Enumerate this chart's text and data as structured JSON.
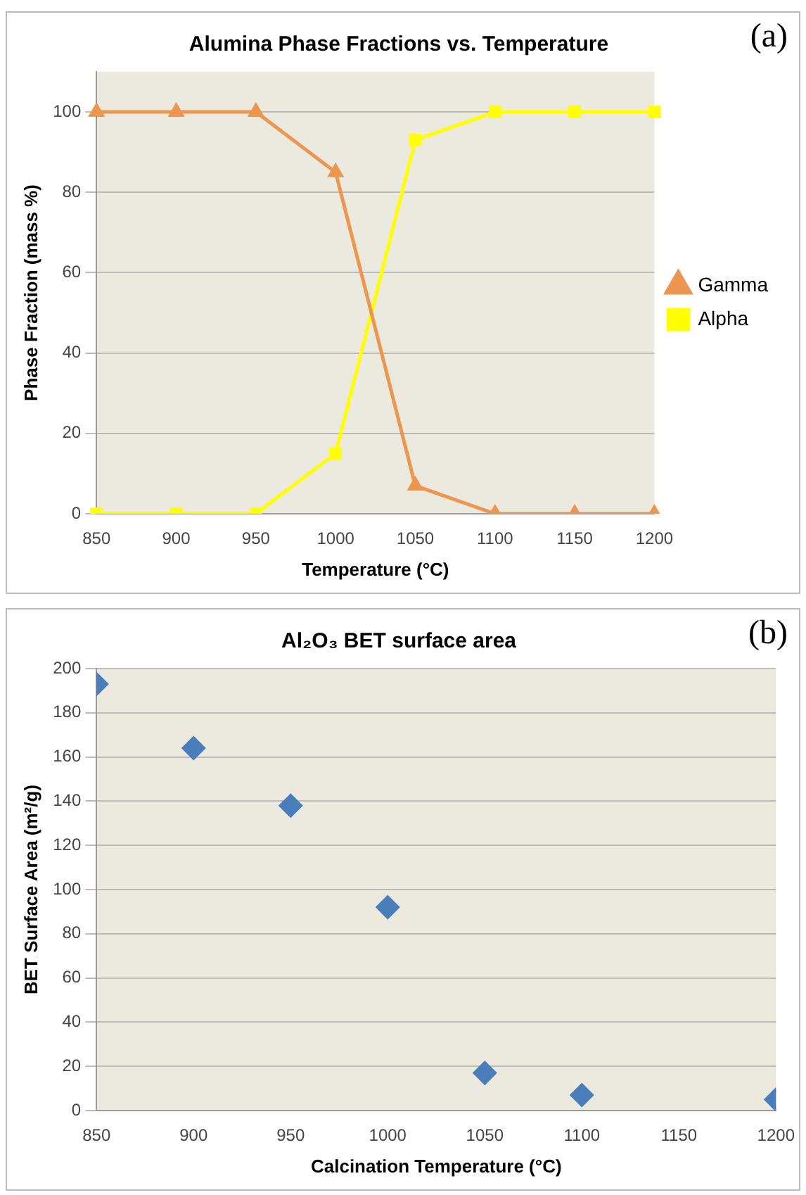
{
  "chart_data": [
    {
      "type": "line",
      "title": "Alumina Phase Fractions vs. Temperature",
      "xlabel": "Temperature (°C)",
      "ylabel": "Phase Fraction (mass %)",
      "annotations": [
        "(a)"
      ],
      "categories": [
        "850",
        "900",
        "950",
        "1000",
        "1050",
        "1100",
        "1150",
        "1200"
      ],
      "series": [
        {
          "name": "Gamma",
          "color": "#ec9650",
          "values": [
            100,
            100,
            100,
            85,
            7,
            0,
            0,
            0
          ],
          "marker": "triangle"
        },
        {
          "name": "Alpha",
          "color": "#ffff00",
          "values": [
            0,
            0,
            0,
            15,
            93,
            100,
            100,
            100
          ],
          "marker": "square"
        }
      ],
      "ylim": [
        0,
        110
      ],
      "yticks": [
        0,
        20,
        40,
        60,
        80,
        100
      ],
      "grid": "y",
      "legend": "right",
      "line_style": "solid"
    },
    {
      "type": "scatter",
      "title": "Al₂O₃ BET surface area",
      "xlabel": "Calcination Temperature (°C)",
      "ylabel": "BET Surface Area (m²/g)",
      "annotations": [
        "(b)"
      ],
      "x": [
        850,
        900,
        950,
        1000,
        1050,
        1100,
        1200
      ],
      "series": [
        {
          "color": "#4a7ebb",
          "values": [
            193,
            164,
            138,
            92,
            17,
            7,
            5
          ]
        }
      ],
      "xlim": [
        850,
        1200
      ],
      "xticks": [
        850,
        900,
        950,
        1000,
        1050,
        1100,
        1150,
        1200
      ],
      "ylim": [
        0,
        200
      ],
      "yticks": [
        0,
        20,
        40,
        60,
        80,
        100,
        120,
        140,
        160,
        180,
        200
      ],
      "grid": "y",
      "marker": "diamond"
    }
  ]
}
